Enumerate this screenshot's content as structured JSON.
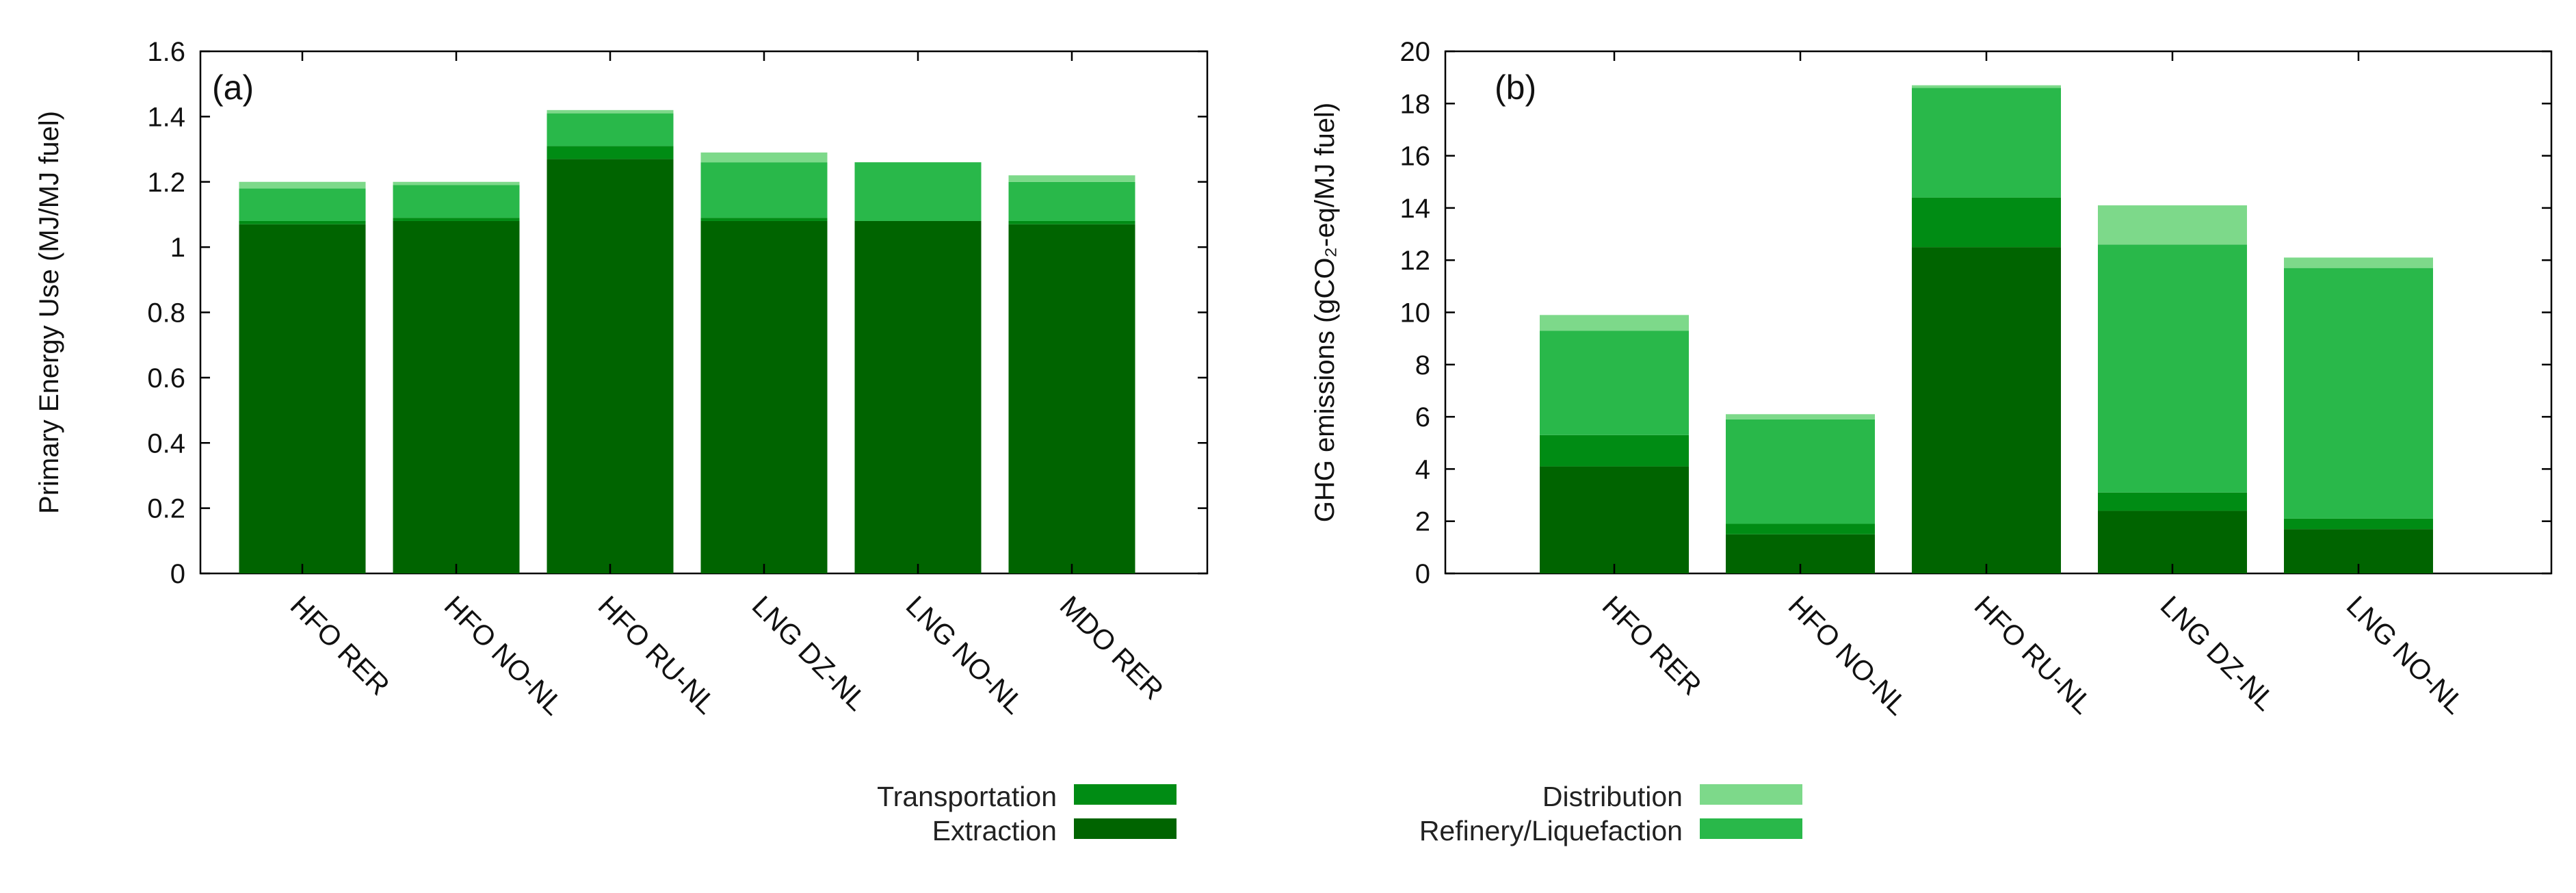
{
  "colors": {
    "extraction": "#006400",
    "transportation": "#008c14",
    "refinery": "#29b84a",
    "distribution": "#7dd98a"
  },
  "legend": {
    "transportation": "Transportation",
    "extraction": "Extraction",
    "distribution": "Distribution",
    "refinery": "Refinery/Liquefaction"
  },
  "chart_data": [
    {
      "type": "bar",
      "stacked": true,
      "panel_label": "(a)",
      "ylabel": "Primary Energy Use (MJ/MJ fuel)",
      "ylim": [
        0,
        1.6
      ],
      "yticks": [
        0,
        0.2,
        0.4,
        0.6,
        0.8,
        1,
        1.2,
        1.4,
        1.6
      ],
      "ytick_labels": [
        "0",
        "0.2",
        "0.4",
        "0.6",
        "0.8",
        "1",
        "1.2",
        "1.4",
        "1.6"
      ],
      "categories": [
        "HFO RER",
        "HFO NO-NL",
        "HFO RU-NL",
        "LNG DZ-NL",
        "LNG NO-NL",
        "MDO RER"
      ],
      "series": [
        {
          "name": "Extraction",
          "key": "extraction",
          "values": [
            1.07,
            1.08,
            1.27,
            1.08,
            1.08,
            1.07
          ]
        },
        {
          "name": "Transportation",
          "key": "transportation",
          "values": [
            0.01,
            0.01,
            0.04,
            0.01,
            0.0,
            0.01
          ]
        },
        {
          "name": "Refinery/Liquefaction",
          "key": "refinery",
          "values": [
            0.1,
            0.1,
            0.1,
            0.17,
            0.18,
            0.12
          ]
        },
        {
          "name": "Distribution",
          "key": "distribution",
          "values": [
            0.02,
            0.01,
            0.01,
            0.03,
            0.0,
            0.02
          ]
        }
      ]
    },
    {
      "type": "bar",
      "stacked": true,
      "panel_label": "(b)",
      "ylabel": "GHG emissions (gCO₂-eq/MJ fuel)",
      "ylim": [
        0,
        20
      ],
      "yticks": [
        0,
        2,
        4,
        6,
        8,
        10,
        12,
        14,
        16,
        18,
        20
      ],
      "ytick_labels": [
        "0",
        "2",
        "4",
        "6",
        "8",
        "10",
        "12",
        "14",
        "16",
        "18",
        "20"
      ],
      "categories": [
        "HFO RER",
        "HFO NO-NL",
        "HFO RU-NL",
        "LNG DZ-NL",
        "LNG NO-NL"
      ],
      "series": [
        {
          "name": "Extraction",
          "key": "extraction",
          "values": [
            4.1,
            1.5,
            12.5,
            2.4,
            1.7
          ]
        },
        {
          "name": "Transportation",
          "key": "transportation",
          "values": [
            1.2,
            0.4,
            1.9,
            0.7,
            0.4
          ]
        },
        {
          "name": "Refinery/Liquefaction",
          "key": "refinery",
          "values": [
            4.0,
            4.0,
            4.2,
            9.5,
            9.6
          ]
        },
        {
          "name": "Distribution",
          "key": "distribution",
          "values": [
            0.6,
            0.2,
            0.1,
            1.5,
            0.4
          ]
        }
      ]
    }
  ]
}
